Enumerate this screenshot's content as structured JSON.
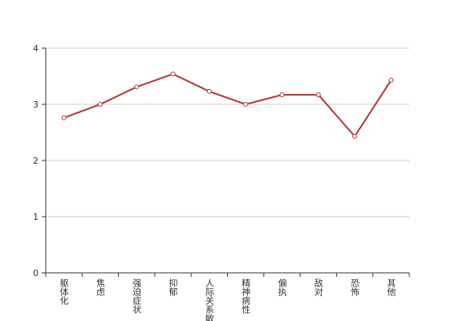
{
  "chart_data": {
    "type": "line",
    "categories": [
      "躯体化",
      "焦虑",
      "强迫症状",
      "抑郁",
      "人际关系敏感",
      "精神病性",
      "偏执",
      "敌对",
      "恐怖",
      "其他"
    ],
    "series": [
      {
        "color": "#b83232",
        "values": [
          2.76,
          3.0,
          3.31,
          3.54,
          3.23,
          3.0,
          3.17,
          3.17,
          2.43,
          3.43
        ]
      }
    ],
    "ylim": [
      0,
      4
    ],
    "yticks": [
      0,
      1,
      2,
      3,
      4
    ],
    "grid": true
  }
}
